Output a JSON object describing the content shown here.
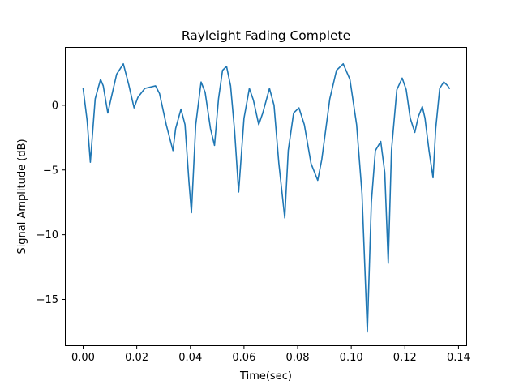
{
  "chart_data": {
    "type": "line",
    "title": "Rayleight Fading Complete",
    "xlabel": "Time(sec)",
    "ylabel": "Signal Amplitude (dB)",
    "xlim": [
      -0.0068,
      0.1432
    ],
    "ylim": [
      -18.6,
      4.5
    ],
    "xticks": [
      0.0,
      0.02,
      0.04,
      0.06,
      0.08,
      0.1,
      0.12,
      0.14
    ],
    "xtick_labels": [
      "0.00",
      "0.02",
      "0.04",
      "0.06",
      "0.08",
      "0.10",
      "0.12",
      "0.14"
    ],
    "yticks": [
      0,
      -5,
      -10,
      -15
    ],
    "ytick_labels": [
      "0",
      "−5",
      "−10",
      "−15"
    ],
    "grid": false,
    "series": [
      {
        "color": "#1f77b4",
        "x": [
          0.0,
          0.0015,
          0.0027,
          0.0045,
          0.0065,
          0.0075,
          0.0092,
          0.0105,
          0.0125,
          0.015,
          0.017,
          0.019,
          0.0204,
          0.023,
          0.027,
          0.0285,
          0.031,
          0.0335,
          0.0345,
          0.0365,
          0.038,
          0.0395,
          0.0404,
          0.042,
          0.044,
          0.0455,
          0.0475,
          0.049,
          0.0505,
          0.052,
          0.0535,
          0.055,
          0.0565,
          0.058,
          0.06,
          0.062,
          0.0635,
          0.0655,
          0.067,
          0.0695,
          0.0712,
          0.073,
          0.0752,
          0.0765,
          0.0785,
          0.0805,
          0.0825,
          0.085,
          0.0875,
          0.089,
          0.092,
          0.0945,
          0.097,
          0.0995,
          0.102,
          0.104,
          0.106,
          0.1075,
          0.109,
          0.111,
          0.1125,
          0.1138,
          0.115,
          0.117,
          0.119,
          0.1205,
          0.122,
          0.1237,
          0.125,
          0.1265,
          0.1275,
          0.129,
          0.1305,
          0.1315,
          0.133,
          0.1345,
          0.136,
          0.1366
        ],
        "values": [
          1.3,
          -1.2,
          -4.4,
          0.5,
          2.0,
          1.5,
          -0.6,
          0.6,
          2.4,
          3.2,
          1.6,
          -0.2,
          0.6,
          1.3,
          1.5,
          0.9,
          -1.5,
          -3.5,
          -1.8,
          -0.3,
          -1.5,
          -6.0,
          -8.3,
          -1.5,
          1.8,
          1.0,
          -1.8,
          -3.1,
          0.5,
          2.7,
          3.0,
          1.5,
          -2.0,
          -6.7,
          -1.0,
          1.3,
          0.4,
          -1.5,
          -0.6,
          1.3,
          0.0,
          -4.5,
          -8.7,
          -3.5,
          -0.6,
          -0.2,
          -1.5,
          -4.5,
          -5.8,
          -4.2,
          0.5,
          2.7,
          3.2,
          2.0,
          -1.5,
          -6.8,
          -17.5,
          -7.5,
          -3.5,
          -2.8,
          -5.2,
          -12.2,
          -3.5,
          1.2,
          2.1,
          1.2,
          -1.0,
          -2.1,
          -0.9,
          -0.1,
          -1.0,
          -3.5,
          -5.6,
          -1.8,
          1.3,
          1.8,
          1.5,
          1.3
        ]
      }
    ]
  }
}
